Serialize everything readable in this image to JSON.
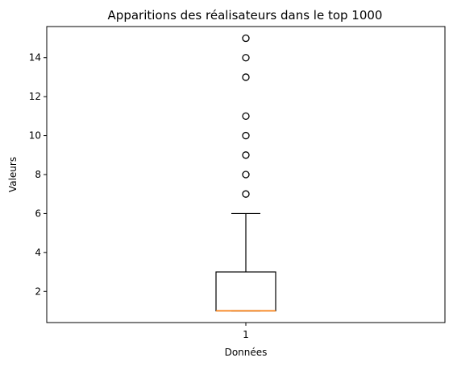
{
  "chart_data": {
    "type": "box",
    "title": "Apparitions des réalisateurs dans le top 1000",
    "xlabel": "Données",
    "ylabel": "Valeurs",
    "categories": [
      "1"
    ],
    "ylim": [
      0.4,
      15.6
    ],
    "yticks": [
      2,
      4,
      6,
      8,
      10,
      12,
      14
    ],
    "yticklabels": [
      "2",
      "4",
      "6",
      "8",
      "10",
      "12",
      "14"
    ],
    "box": {
      "min": 1,
      "q1": 1,
      "median": 1,
      "q3": 3,
      "whisker_low": 1,
      "whisker_high": 6
    },
    "outliers": [
      7,
      8,
      9,
      10,
      11,
      13,
      14,
      15
    ],
    "grid": false,
    "colors": {
      "box": "#000000",
      "median": "#ff7f0e",
      "outlier_edge": "#000000"
    }
  }
}
